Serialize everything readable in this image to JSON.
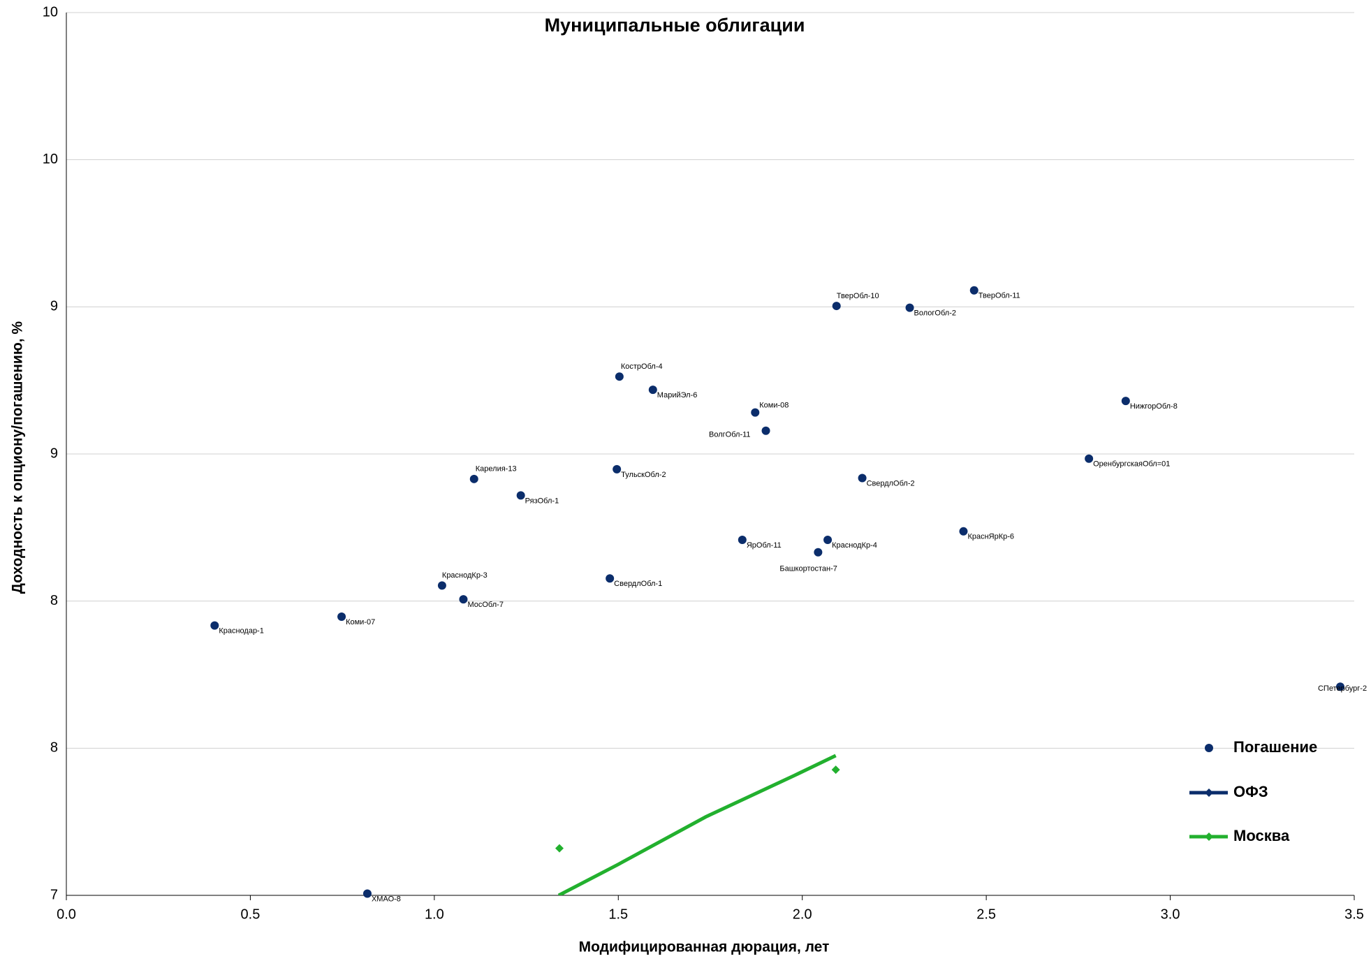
{
  "chart_data": {
    "type": "scatter",
    "title": "Муниципальные облигации",
    "x_label": "Модифицированная дюрация, лет",
    "y_label": "Доходность к опциону/погашению, %",
    "xlim": [
      0,
      3.5
    ],
    "xticks": [
      {
        "value": 0,
        "label": "0.0"
      },
      0.5,
      {
        "value": 1,
        "label": "1.0"
      },
      1.5,
      {
        "value": 2,
        "label": "2.0"
      },
      2.5,
      {
        "value": 3,
        "label": "3.0"
      },
      3.5
    ],
    "ylim": [
      7,
      10
    ],
    "yticks": [
      7,
      {
        "value": 7.5,
        "label": "8"
      },
      8,
      {
        "value": 8.5,
        "label": "9"
      },
      9,
      {
        "value": 9.5,
        "label": "10"
      },
      10
    ],
    "grid": true,
    "legend": "right",
    "series": [
      {
        "name": "Погашение",
        "color": "#0b2d6b",
        "marker": "circle",
        "x": [
          0.403,
          0.748,
          0.818,
          1.021,
          1.079,
          1.108,
          1.235,
          1.477,
          1.496,
          1.503,
          1.594,
          1.837,
          1.872,
          1.901,
          2.043,
          2.069,
          2.093,
          2.163,
          2.292,
          2.438,
          2.467,
          2.779,
          2.879,
          3.462
        ],
        "values": [
          7.917,
          7.947,
          7.006,
          8.053,
          8.006,
          8.415,
          8.359,
          8.077,
          8.448,
          8.763,
          8.718,
          8.208,
          8.641,
          8.579,
          8.166,
          8.208,
          9.003,
          8.418,
          8.997,
          8.237,
          9.056,
          8.484,
          8.68,
          7.709
        ],
        "point_labels": [
          "Краснодар-1",
          "Коми-07",
          "ХМАО-8",
          "КраснодКр-3",
          "МосОбл-7",
          "Карелия-13",
          "РязОбл-1",
          "СвердлОбл-1",
          "ТульскОбл-2",
          "КострОбл-4",
          "МарийЭл-6",
          "ЯрОбл-11",
          "Коми-08",
          "ВолгОбл-11",
          "Башкортостан-7",
          "КраснодКр-4",
          "ТверОбл-10",
          "СвердлОбл-2",
          "ВологОбл-2",
          "КраснЯрКр-6",
          "ТверОбл-11",
          "ОренбургскаяОбл=01",
          "НижгорОбл-8",
          "СПетербург-2"
        ]
      },
      {
        "name": "ОФЗ",
        "color": "#0b2d6b",
        "marker": "diamond",
        "x": [],
        "values": []
      },
      {
        "name": "Москва",
        "color": "#22b02e",
        "marker": "diamond",
        "x": [
          1.34,
          2.091
        ],
        "values": [
          7.16,
          7.427
        ],
        "trendline": {
          "x": [
            1.338,
            1.498,
            1.738,
            1.978,
            2.091
          ],
          "values": [
            7.0,
            7.104,
            7.267,
            7.407,
            7.475
          ]
        }
      }
    ]
  }
}
